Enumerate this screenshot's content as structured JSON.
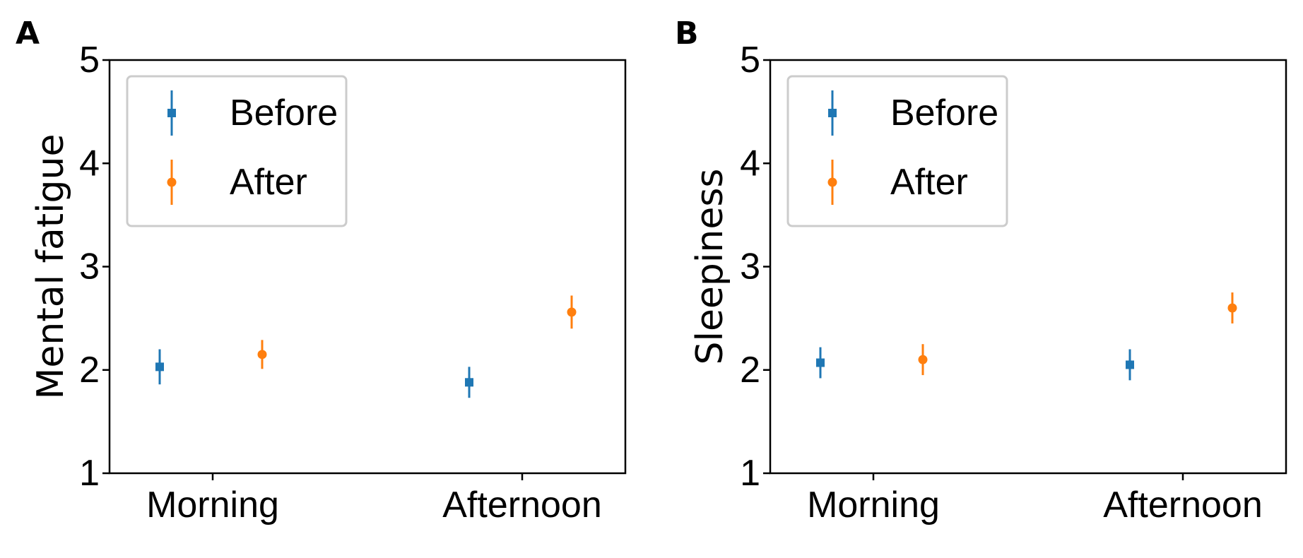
{
  "chart_data": [
    {
      "panel_label": "A",
      "type": "scatter",
      "ylabel": "Mental fatigue",
      "ylim": [
        1,
        5
      ],
      "yticks": [
        "1",
        "2",
        "3",
        "4",
        "5"
      ],
      "categories": [
        "Morning",
        "Afternoon"
      ],
      "legend_position": "upper-left",
      "series": [
        {
          "name": "Before",
          "color": "#1f77b4",
          "marker": "square",
          "values": [
            2.03,
            1.88
          ],
          "errors": [
            0.17,
            0.15
          ]
        },
        {
          "name": "After",
          "color": "#ff7f0e",
          "marker": "circle",
          "values": [
            2.15,
            2.56
          ],
          "errors": [
            0.14,
            0.16
          ]
        }
      ]
    },
    {
      "panel_label": "B",
      "type": "scatter",
      "ylabel": "Sleepiness",
      "ylim": [
        1,
        5
      ],
      "yticks": [
        "1",
        "2",
        "3",
        "4",
        "5"
      ],
      "categories": [
        "Morning",
        "Afternoon"
      ],
      "legend_position": "upper-left",
      "series": [
        {
          "name": "Before",
          "color": "#1f77b4",
          "marker": "square",
          "values": [
            2.07,
            2.05
          ],
          "errors": [
            0.15,
            0.15
          ]
        },
        {
          "name": "After",
          "color": "#ff7f0e",
          "marker": "circle",
          "values": [
            2.1,
            2.6
          ],
          "errors": [
            0.15,
            0.15
          ]
        }
      ]
    }
  ]
}
